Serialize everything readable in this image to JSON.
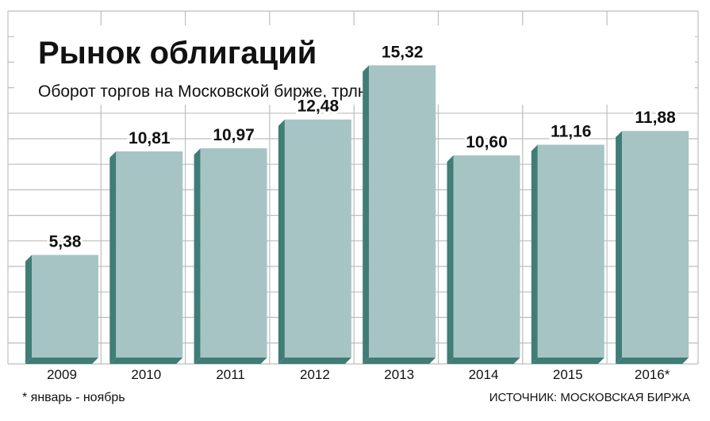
{
  "chart_data": {
    "type": "bar",
    "title": "Рынок облигаций",
    "subtitle": "Оборот торгов на Московской бирже, трлн руб.",
    "categories": [
      "2009",
      "2010",
      "2011",
      "2012",
      "2013",
      "2014",
      "2015",
      "2016*"
    ],
    "values": [
      5.38,
      10.81,
      10.97,
      12.48,
      15.32,
      10.6,
      11.16,
      11.88
    ],
    "value_labels": [
      "5,38",
      "10,81",
      "10,97",
      "12,48",
      "15,32",
      "10,60",
      "11,16",
      "11,88"
    ],
    "ylim": [
      0,
      17
    ],
    "grid": true,
    "footnote": "* январь - ноябрь",
    "source": "ИСТОЧНИК: МОСКОВСКАЯ БИРЖА",
    "colors": {
      "bar_face": "#a6c4c3",
      "bar_side": "#3f7d76",
      "grid": "#bdbdbd",
      "text": "#111111"
    }
  }
}
